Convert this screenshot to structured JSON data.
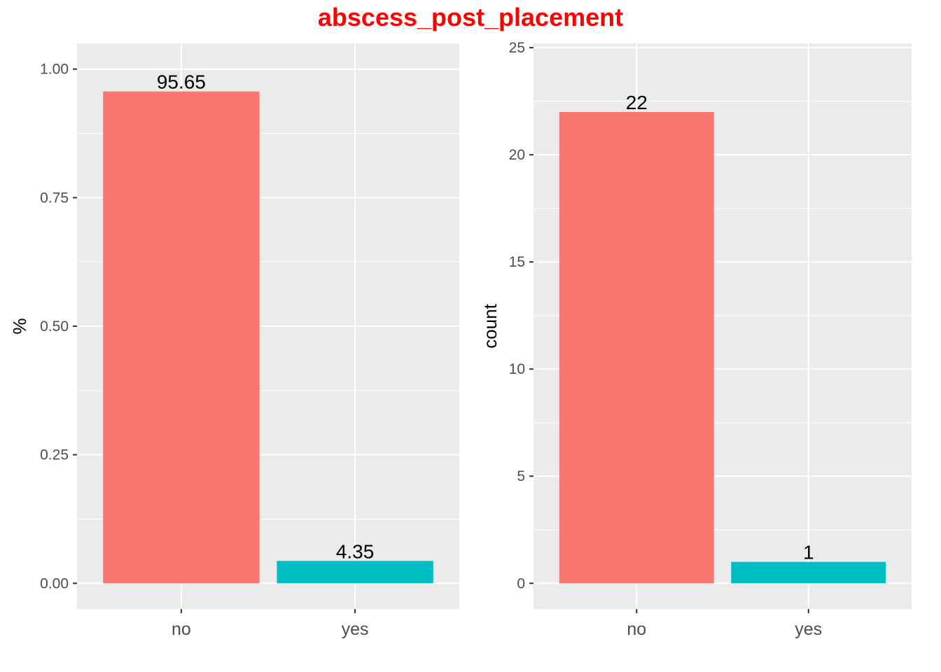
{
  "title": "abscess_post_placement",
  "colors": {
    "no": "#F8766D",
    "yes": "#00BFC4",
    "panel_bg": "#EBEBEB",
    "grid": "#FFFFFF",
    "title": "#FF0000"
  },
  "chart_data": [
    {
      "type": "bar",
      "categories": [
        "no",
        "yes"
      ],
      "values": [
        0.9565,
        0.0435
      ],
      "data_labels": [
        "95.65",
        "4.35"
      ],
      "ylabel": "%",
      "xlabel": "",
      "ylim": [
        -0.05,
        1.05
      ],
      "yticks": [
        0,
        0.25,
        0.5,
        0.75,
        1.0
      ],
      "ytick_labels": [
        "0.00",
        "0.25",
        "0.50",
        "0.75",
        "1.00"
      ],
      "grid": true,
      "legend": "none"
    },
    {
      "type": "bar",
      "categories": [
        "no",
        "yes"
      ],
      "values": [
        22,
        1
      ],
      "data_labels": [
        "22",
        "1"
      ],
      "ylabel": "count",
      "xlabel": "",
      "ylim": [
        -1.2,
        25.2
      ],
      "yticks": [
        0,
        5,
        10,
        15,
        20,
        25
      ],
      "ytick_labels": [
        "0",
        "5",
        "10",
        "15",
        "20",
        "25"
      ],
      "grid": true,
      "legend": "none"
    }
  ]
}
